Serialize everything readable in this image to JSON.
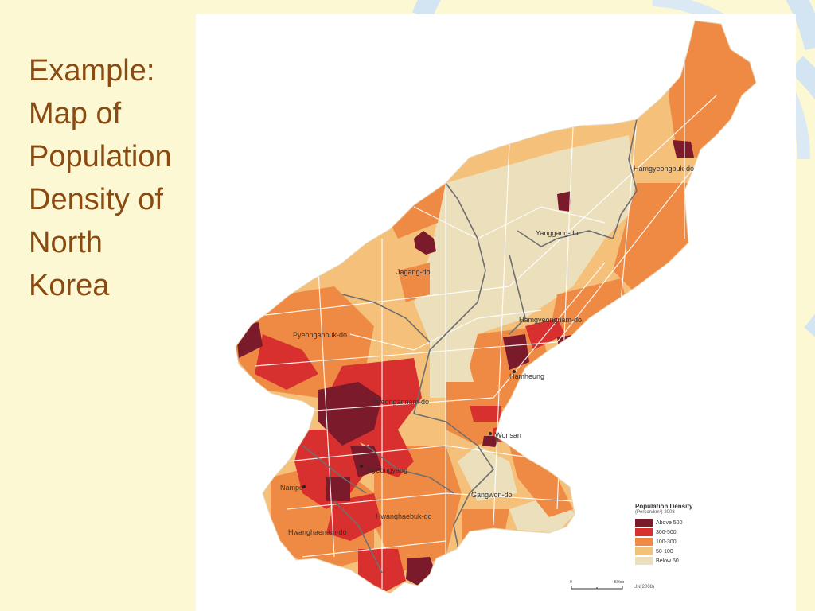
{
  "slide": {
    "title_lines": [
      "Example:",
      "Map of",
      "Population",
      "Density of",
      "North",
      "Korea"
    ]
  },
  "map": {
    "regions": {
      "hamgyeongbuk": "Hamgyeongbuk-do",
      "yanggang": "Yanggang-do",
      "jagang": "Jagang-do",
      "hamgyeongnam": "Hamgyeongnam-do",
      "pyeonganbuk": "Pyeonganbuk-do",
      "hamheung": "Hamheung",
      "pyeongannam": "Pyeongannam-do",
      "wonsan": "Wonsan",
      "pyeongyang": "Pyeongyang",
      "nampo": "Nampo",
      "gangwon": "Gangwon-do",
      "hwanghaebuk": "Hwanghaebuk-do",
      "hwanghaenam": "Hwanghaenam-do"
    },
    "legend": {
      "title": "Population Density",
      "subtitle": "(Person/km²) 2008",
      "classes": [
        {
          "label": "Above 500",
          "color": "#7a1a2a"
        },
        {
          "label": "300-500",
          "color": "#d8302e"
        },
        {
          "label": "100-300",
          "color": "#ef8a44"
        },
        {
          "label": "50-100",
          "color": "#f4c07a"
        },
        {
          "label": "Below 50",
          "color": "#ece0bc"
        }
      ]
    },
    "scale_label": "50km",
    "source": "UN(2008)"
  },
  "colors": {
    "background": "#fdf8d4",
    "title": "#8a4a10",
    "deco": "#c6dcf0"
  }
}
